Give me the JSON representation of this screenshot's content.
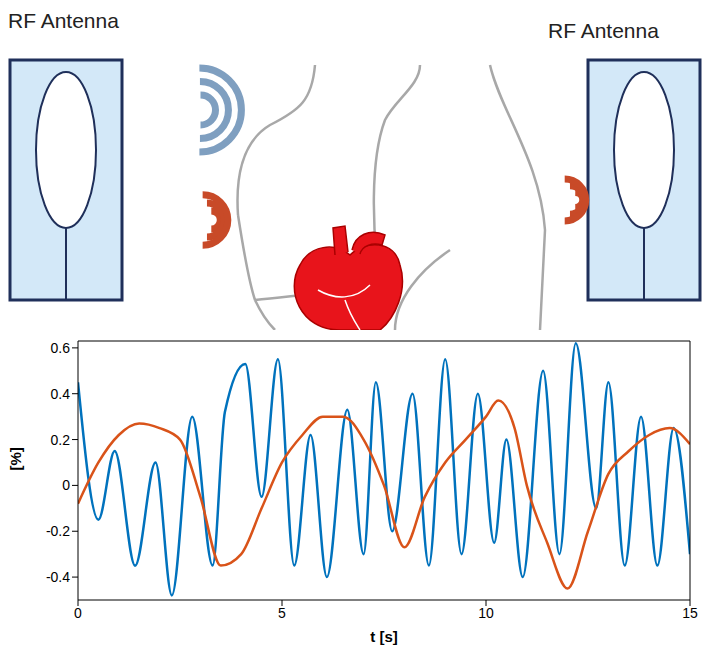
{
  "diagram": {
    "left_label": "RF Antenna",
    "right_label": "RF Antenna"
  },
  "chart_data": {
    "type": "line",
    "xlabel": "t [s]",
    "ylabel": "[%]",
    "xlim": [
      0,
      15
    ],
    "xticks": [
      0,
      5,
      10,
      15
    ],
    "ylim": [
      -0.5,
      0.63
    ],
    "yticks": [
      -0.4,
      -0.2,
      0,
      0.2,
      0.4,
      0.6
    ],
    "grid": false,
    "series": [
      {
        "color": "#0072bd",
        "x": [
          0,
          0.5,
          0.9,
          1.4,
          1.9,
          2.3,
          2.8,
          3.3,
          3.6,
          4.1,
          4.5,
          4.9,
          5.3,
          5.7,
          6.1,
          6.6,
          7.0,
          7.3,
          7.7,
          8.2,
          8.6,
          9.0,
          9.4,
          9.8,
          10.2,
          10.5,
          10.9,
          11.4,
          11.8,
          12.2,
          12.7,
          13.0,
          13.4,
          13.8,
          14.2,
          14.6,
          15
        ],
        "values": [
          0.45,
          -0.15,
          0.15,
          -0.35,
          0.1,
          -0.48,
          0.3,
          -0.35,
          0.32,
          0.53,
          -0.05,
          0.55,
          -0.35,
          0.22,
          -0.4,
          0.33,
          -0.3,
          0.45,
          -0.2,
          0.4,
          -0.35,
          0.55,
          -0.3,
          0.4,
          -0.25,
          0.2,
          -0.4,
          0.5,
          -0.3,
          0.62,
          -0.1,
          0.45,
          -0.35,
          0.3,
          -0.35,
          0.25,
          -0.3
        ]
      },
      {
        "color": "#d95319",
        "x": [
          0,
          0.5,
          1,
          1.5,
          2,
          2.5,
          3,
          3.5,
          4,
          4.5,
          5,
          5.5,
          6,
          6.5,
          7,
          7.5,
          8,
          8.5,
          9,
          9.5,
          10,
          10.3,
          10.7,
          11,
          11.5,
          12,
          12.5,
          13,
          13.5,
          14,
          14.5,
          15
        ],
        "values": [
          -0.08,
          0.1,
          0.22,
          0.27,
          0.25,
          0.2,
          -0.05,
          -0.35,
          -0.3,
          -0.1,
          0.1,
          0.22,
          0.3,
          0.3,
          0.2,
          0.0,
          -0.27,
          -0.05,
          0.1,
          0.2,
          0.3,
          0.37,
          0.25,
          0.0,
          -0.25,
          -0.45,
          -0.2,
          0.05,
          0.15,
          0.22,
          0.25,
          0.18
        ]
      }
    ]
  }
}
